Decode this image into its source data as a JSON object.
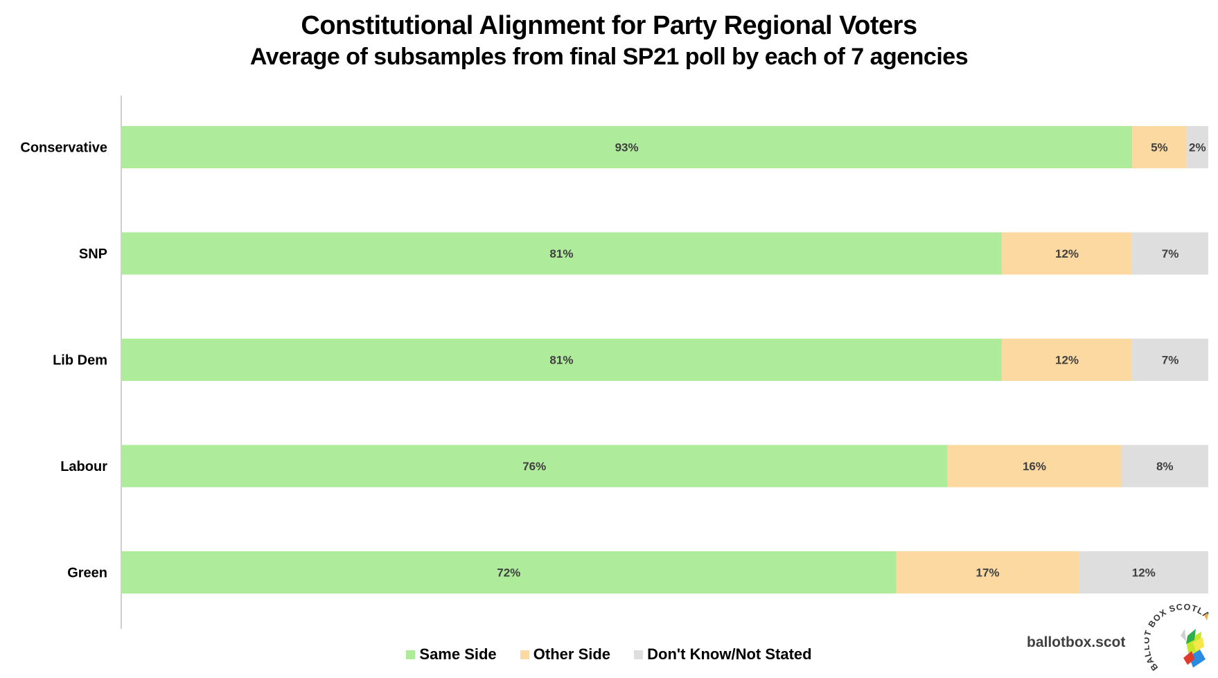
{
  "chart_data": {
    "type": "bar",
    "orientation": "horizontal",
    "stacked": true,
    "normalized": true,
    "title": "Constitutional Alignment for Party Regional Voters",
    "subtitle": "Average of subsamples from final SP21 poll by each of 7 agencies",
    "categories": [
      "Conservative",
      "SNP",
      "Lib Dem",
      "Labour",
      "Green"
    ],
    "series": [
      {
        "name": "Same Side",
        "color": "#aeeb9b",
        "values": [
          93,
          81,
          81,
          76,
          72
        ]
      },
      {
        "name": "Other Side",
        "color": "#fbd9a0",
        "values": [
          5,
          12,
          12,
          16,
          17
        ]
      },
      {
        "name": "Don't Know/Not Stated",
        "color": "#dedede",
        "values": [
          2,
          7,
          7,
          8,
          12
        ]
      }
    ],
    "data_labels": [
      [
        "93%",
        "5%",
        "2%"
      ],
      [
        "81%",
        "12%",
        "7%"
      ],
      [
        "81%",
        "12%",
        "7%"
      ],
      [
        "76%",
        "16%",
        "8%"
      ],
      [
        "72%",
        "17%",
        "12%"
      ]
    ],
    "xlim": [
      0,
      100
    ],
    "grid": false,
    "legend_position": "bottom"
  },
  "branding": {
    "site": "ballotbox.scot",
    "logo_text": "BALLOT BOX SCOTLAND"
  }
}
